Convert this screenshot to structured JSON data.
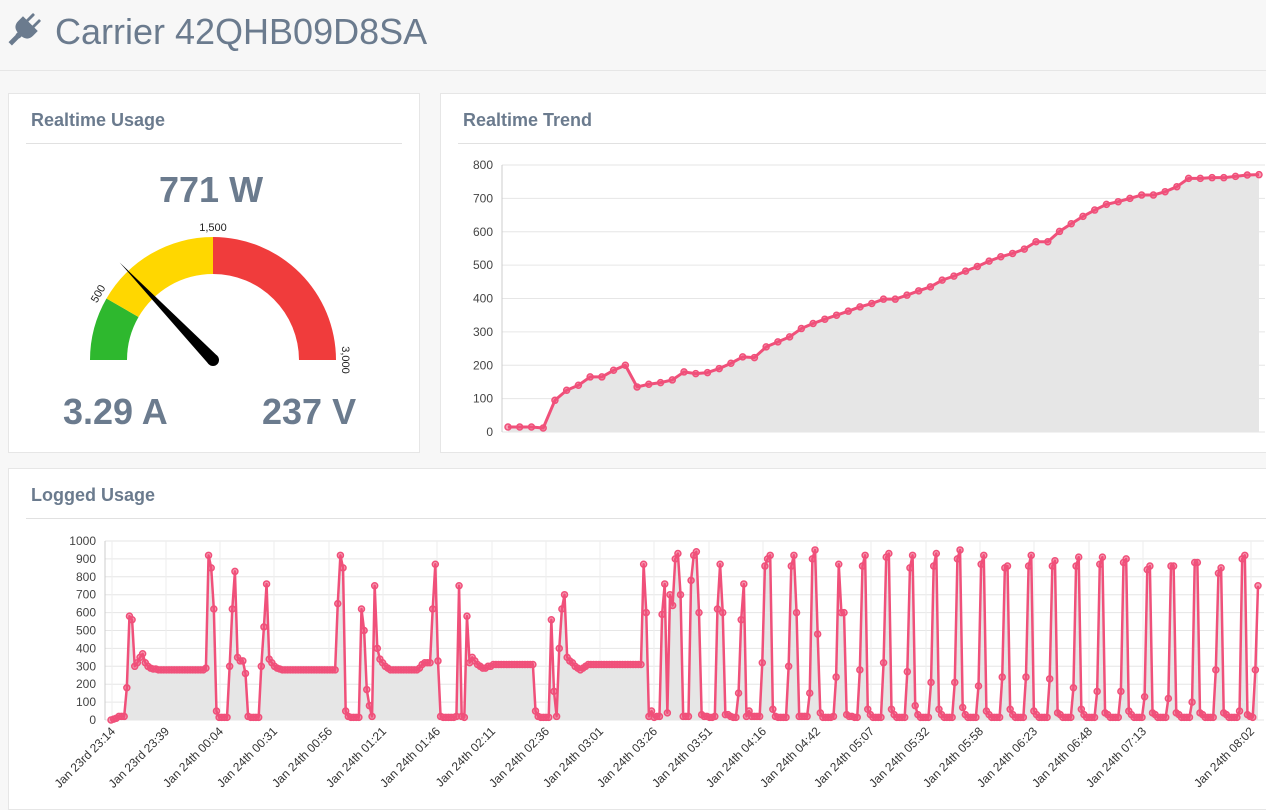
{
  "header": {
    "title": "Carrier 42QHB09D8SA",
    "icon": "plug-icon"
  },
  "realtime_usage": {
    "title": "Realtime Usage",
    "power": "771 W",
    "current": "3.29 A",
    "voltage": "237 V",
    "gauge": {
      "value": 771,
      "min": 0,
      "max": 3000,
      "tick_labels": [
        "500",
        "1,500",
        "3,000"
      ],
      "bands": [
        {
          "from": 0,
          "to": 500,
          "color": "#2eb82e"
        },
        {
          "from": 500,
          "to": 1500,
          "color": "#ffd700"
        },
        {
          "from": 1500,
          "to": 3000,
          "color": "#f03c3c"
        }
      ]
    }
  },
  "realtime_trend": {
    "title": "Realtime Trend",
    "chart_data": {
      "type": "area",
      "yticks": [
        "0",
        "100",
        "200",
        "300",
        "400",
        "500",
        "600",
        "700",
        "800"
      ],
      "ylim": [
        0,
        800
      ],
      "values": [
        15,
        15,
        15,
        12,
        95,
        125,
        140,
        165,
        165,
        185,
        200,
        135,
        143,
        148,
        156,
        180,
        175,
        178,
        190,
        206,
        225,
        223,
        255,
        270,
        285,
        310,
        325,
        338,
        350,
        362,
        375,
        385,
        398,
        398,
        410,
        423,
        435,
        455,
        467,
        482,
        496,
        512,
        525,
        535,
        548,
        570,
        570,
        601,
        624,
        646,
        665,
        682,
        690,
        700,
        710,
        710,
        720,
        735,
        760,
        760,
        762,
        762,
        766,
        770,
        771
      ],
      "line_color": "#f0507a",
      "fill_color": "#e6e6e6"
    }
  },
  "logged_usage": {
    "title": "Logged Usage",
    "chart_data": {
      "type": "area",
      "yticks": [
        "0",
        "100",
        "200",
        "300",
        "400",
        "500",
        "600",
        "700",
        "800",
        "900",
        "1000"
      ],
      "ylim": [
        0,
        1000
      ],
      "xticks": [
        "Jan 23rd 23:14",
        "Jan 23rd 23:39",
        "Jan 24th 00:04",
        "Jan 24th 00:31",
        "Jan 24th 00:56",
        "Jan 24th 01:21",
        "Jan 24th 01:46",
        "Jan 24th 02:11",
        "Jan 24th 02:36",
        "Jan 24th 03:01",
        "Jan 24th 03:26",
        "Jan 24th 03:51",
        "Jan 24th 04:16",
        "Jan 24th 04:42",
        "Jan 24th 05:07",
        "Jan 24th 05:32",
        "Jan 24th 05:58",
        "Jan 24th 06:23",
        "Jan 24th 06:48",
        "Jan 24th 07:13",
        "Jan 24th 08:02"
      ],
      "values": [
        0,
        5,
        10,
        20,
        20,
        20,
        180,
        580,
        560,
        300,
        320,
        350,
        370,
        320,
        300,
        290,
        285,
        285,
        280,
        280,
        280,
        280,
        280,
        280,
        280,
        280,
        280,
        280,
        280,
        280,
        280,
        280,
        280,
        280,
        280,
        280,
        290,
        920,
        850,
        620,
        50,
        15,
        15,
        15,
        15,
        300,
        620,
        830,
        350,
        330,
        330,
        260,
        20,
        15,
        15,
        15,
        15,
        300,
        520,
        760,
        340,
        320,
        300,
        290,
        285,
        280,
        280,
        280,
        280,
        280,
        280,
        280,
        280,
        280,
        280,
        280,
        280,
        280,
        280,
        280,
        280,
        280,
        280,
        280,
        280,
        280,
        650,
        920,
        850,
        50,
        20,
        15,
        15,
        15,
        15,
        620,
        500,
        170,
        80,
        20,
        750,
        400,
        340,
        320,
        300,
        290,
        280,
        280,
        280,
        280,
        280,
        280,
        280,
        280,
        280,
        280,
        280,
        290,
        310,
        320,
        320,
        320,
        620,
        870,
        330,
        20,
        15,
        15,
        15,
        15,
        15,
        20,
        750,
        20,
        15,
        580,
        320,
        350,
        330,
        310,
        300,
        290,
        290,
        300,
        300,
        310,
        310,
        310,
        310,
        310,
        310,
        310,
        310,
        310,
        310,
        310,
        310,
        310,
        310,
        310,
        310,
        50,
        20,
        15,
        15,
        15,
        15,
        560,
        160,
        20,
        400,
        620,
        700,
        350,
        330,
        320,
        300,
        290,
        280,
        290,
        300,
        310,
        310,
        310,
        310,
        310,
        310,
        310,
        310,
        310,
        310,
        310,
        310,
        310,
        310,
        310,
        310,
        310,
        310,
        310,
        310,
        310,
        870,
        600,
        20,
        50,
        15,
        20,
        20,
        590,
        760,
        40,
        700,
        640,
        900,
        930,
        700,
        20,
        20,
        20,
        780,
        920,
        940,
        600,
        30,
        20,
        20,
        15,
        15,
        20,
        620,
        870,
        600,
        30,
        30,
        20,
        15,
        15,
        150,
        560,
        760,
        20,
        50,
        20,
        20,
        20,
        20,
        320,
        860,
        900,
        920,
        60,
        20,
        15,
        15,
        15,
        15,
        300,
        860,
        920,
        600,
        20,
        20,
        20,
        20,
        150,
        900,
        950,
        480,
        40,
        15,
        15,
        15,
        15,
        20,
        240,
        870,
        600,
        600,
        30,
        20,
        20,
        15,
        15,
        280,
        860,
        920,
        60,
        30,
        15,
        15,
        15,
        15,
        320,
        910,
        930,
        60,
        30,
        15,
        15,
        15,
        15,
        270,
        850,
        920,
        80,
        30,
        15,
        15,
        15,
        15,
        210,
        860,
        930,
        60,
        30,
        15,
        15,
        15,
        15,
        210,
        900,
        950,
        70,
        30,
        15,
        15,
        15,
        15,
        190,
        870,
        920,
        50,
        30,
        15,
        15,
        15,
        15,
        240,
        850,
        860,
        60,
        30,
        15,
        15,
        15,
        15,
        240,
        860,
        920,
        50,
        30,
        15,
        15,
        15,
        15,
        230,
        860,
        890,
        40,
        30,
        15,
        15,
        15,
        15,
        180,
        860,
        910,
        60,
        30,
        15,
        15,
        15,
        15,
        160,
        870,
        910,
        40,
        30,
        15,
        15,
        15,
        15,
        160,
        880,
        900,
        50,
        30,
        15,
        15,
        15,
        15,
        130,
        840,
        860,
        40,
        30,
        15,
        15,
        15,
        15,
        120,
        860,
        860,
        40,
        30,
        15,
        15,
        15,
        15,
        100,
        880,
        880,
        40,
        30,
        15,
        15,
        15,
        15,
        280,
        820,
        850,
        40,
        30,
        15,
        15,
        15,
        15,
        50,
        900,
        920,
        30,
        20,
        15,
        280,
        750
      ],
      "line_color": "#f0507a",
      "fill_color": "#e6e6e6"
    }
  }
}
